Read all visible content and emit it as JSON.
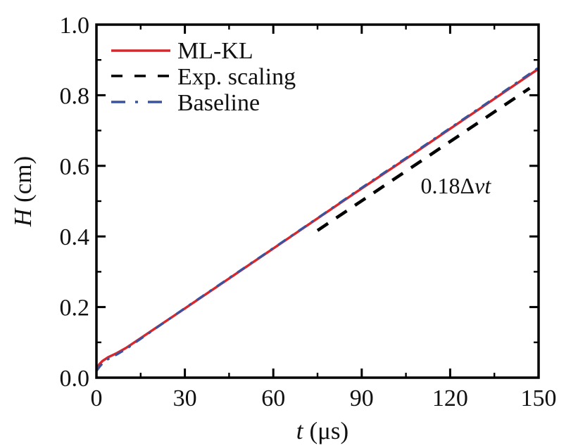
{
  "chart_data": {
    "type": "line",
    "title": "",
    "xlabel": "t (μs)",
    "ylabel": "H (cm)",
    "xlabel_parts": {
      "var": "t",
      "unit": "(μs)"
    },
    "ylabel_parts": {
      "var": "H",
      "unit": "(cm)"
    },
    "xlim": [
      0,
      150
    ],
    "ylim": [
      0.0,
      1.0
    ],
    "grid": false,
    "legend_position": "top-left",
    "x_axis": {
      "major_values": [
        0,
        30,
        60,
        90,
        120,
        150
      ],
      "major_labels": [
        "0",
        "30",
        "60",
        "90",
        "120",
        "150"
      ],
      "minor_values": [
        15,
        45,
        75,
        105,
        135
      ]
    },
    "y_axis": {
      "major_values": [
        0.0,
        0.2,
        0.4,
        0.6,
        0.8,
        1.0
      ],
      "major_labels": [
        "0.0",
        "0.2",
        "0.4",
        "0.6",
        "0.8",
        "1.0"
      ],
      "minor_values": [
        0.1,
        0.3,
        0.5,
        0.7,
        0.9
      ]
    },
    "series": [
      {
        "name": "ML-KL",
        "style": "solid",
        "color": "#d7282d",
        "width": 3.5,
        "x": [
          0,
          1,
          2,
          4,
          7,
          10,
          15,
          20,
          30,
          45,
          60,
          75,
          90,
          105,
          120,
          135,
          150
        ],
        "y": [
          0.026,
          0.038,
          0.047,
          0.058,
          0.07,
          0.084,
          0.112,
          0.14,
          0.196,
          0.281,
          0.366,
          0.451,
          0.536,
          0.62,
          0.705,
          0.79,
          0.875
        ]
      },
      {
        "name": "Exp. scaling",
        "style": "dashed",
        "color": "#000000",
        "width": 4.5,
        "x": [
          75,
          147
        ],
        "y": [
          0.417,
          0.82
        ]
      },
      {
        "name": "Baseline",
        "style": "dashdot",
        "color": "#3a539e",
        "width": 3.2,
        "x": [
          0,
          1,
          2,
          4,
          7,
          10,
          15,
          20,
          30,
          45,
          60,
          75,
          90,
          105,
          120,
          135,
          150
        ],
        "y": [
          0.019,
          0.03,
          0.04,
          0.053,
          0.066,
          0.081,
          0.11,
          0.139,
          0.197,
          0.282,
          0.367,
          0.452,
          0.538,
          0.622,
          0.707,
          0.792,
          0.878
        ]
      }
    ],
    "annotation": {
      "text": "0.18Δvt",
      "prefix": "0.18Δ",
      "italic": "vt",
      "t": 110,
      "H": 0.522
    }
  }
}
